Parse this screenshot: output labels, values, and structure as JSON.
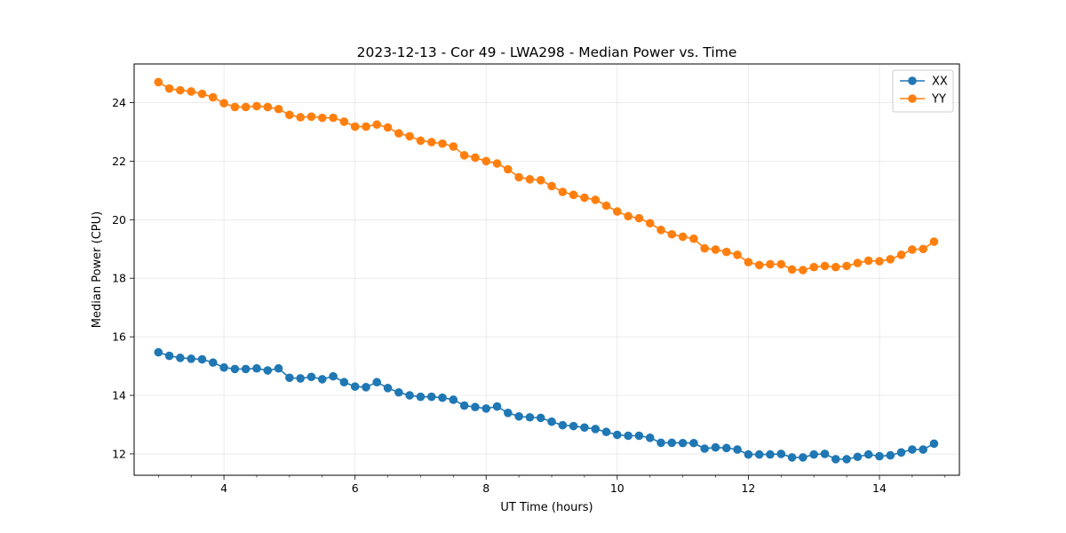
{
  "chart_data": {
    "type": "line",
    "title": "2023-12-13 - Cor 49 - LWA298 - Median Power vs. Time",
    "xlabel": "UT Time (hours)",
    "ylabel": "Median Power (CPU)",
    "xlim": [
      2.63,
      15.22
    ],
    "ylim": [
      11.27,
      25.32
    ],
    "xticks": [
      4,
      6,
      8,
      10,
      12,
      14
    ],
    "yticks": [
      12,
      14,
      16,
      18,
      20,
      22,
      24
    ],
    "x_minor_step": 0.5,
    "grid": true,
    "legend_position": "top-right",
    "x": [
      3.0,
      3.167,
      3.333,
      3.5,
      3.667,
      3.833,
      4.0,
      4.167,
      4.333,
      4.5,
      4.667,
      4.833,
      5.0,
      5.167,
      5.333,
      5.5,
      5.667,
      5.833,
      6.0,
      6.167,
      6.333,
      6.5,
      6.667,
      6.833,
      7.0,
      7.167,
      7.333,
      7.5,
      7.667,
      7.833,
      8.0,
      8.167,
      8.333,
      8.5,
      8.667,
      8.833,
      9.0,
      9.167,
      9.333,
      9.5,
      9.667,
      9.833,
      10.0,
      10.167,
      10.333,
      10.5,
      10.667,
      10.833,
      11.0,
      11.167,
      11.333,
      11.5,
      11.667,
      11.833,
      12.0,
      12.167,
      12.333,
      12.5,
      12.667,
      12.833,
      13.0,
      13.167,
      13.333,
      13.5,
      13.667,
      13.833,
      14.0,
      14.167,
      14.333,
      14.5,
      14.667,
      14.833
    ],
    "series": [
      {
        "name": "XX",
        "color": "#1f77b4",
        "values": [
          15.47,
          15.35,
          15.28,
          15.25,
          15.23,
          15.12,
          14.95,
          14.9,
          14.9,
          14.92,
          14.85,
          14.92,
          14.6,
          14.58,
          14.63,
          14.55,
          14.65,
          14.45,
          14.3,
          14.28,
          14.45,
          14.25,
          14.1,
          14.0,
          13.95,
          13.95,
          13.92,
          13.85,
          13.65,
          13.6,
          13.55,
          13.62,
          13.4,
          13.28,
          13.25,
          13.23,
          13.1,
          12.98,
          12.95,
          12.9,
          12.85,
          12.75,
          12.65,
          12.62,
          12.62,
          12.55,
          12.38,
          12.38,
          12.37,
          12.37,
          12.18,
          12.22,
          12.2,
          12.15,
          11.98,
          11.98,
          11.98,
          12.0,
          11.88,
          11.88,
          11.98,
          12.0,
          11.82,
          11.82,
          11.9,
          11.98,
          11.92,
          11.95,
          12.05,
          12.15,
          12.15,
          12.35
        ]
      },
      {
        "name": "YY",
        "color": "#ff7f0e",
        "values": [
          24.7,
          24.48,
          24.42,
          24.38,
          24.3,
          24.18,
          23.98,
          23.85,
          23.85,
          23.88,
          23.85,
          23.78,
          23.58,
          23.5,
          23.52,
          23.48,
          23.48,
          23.35,
          23.18,
          23.18,
          23.25,
          23.15,
          22.95,
          22.85,
          22.7,
          22.65,
          22.6,
          22.5,
          22.2,
          22.12,
          22.0,
          21.92,
          21.72,
          21.45,
          21.38,
          21.35,
          21.15,
          20.95,
          20.85,
          20.75,
          20.68,
          20.48,
          20.28,
          20.12,
          20.05,
          19.88,
          19.65,
          19.5,
          19.42,
          19.35,
          19.02,
          18.98,
          18.9,
          18.8,
          18.55,
          18.45,
          18.48,
          18.48,
          18.3,
          18.28,
          18.38,
          18.42,
          18.38,
          18.42,
          18.52,
          18.6,
          18.58,
          18.65,
          18.8,
          18.98,
          19.0,
          19.25
        ]
      }
    ]
  }
}
